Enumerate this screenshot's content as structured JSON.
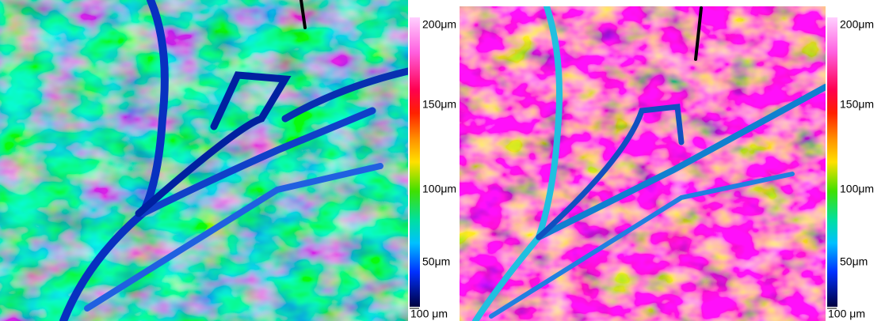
{
  "panels": [
    {
      "colorbar_labels": [
        "200μm",
        "150μm",
        "100μm",
        "50μm"
      ],
      "scale_bar": "100 μm"
    },
    {
      "colorbar_labels": [
        "200μm",
        "150μm",
        "100μm",
        "50μm"
      ],
      "scale_bar": "100 μm"
    }
  ]
}
